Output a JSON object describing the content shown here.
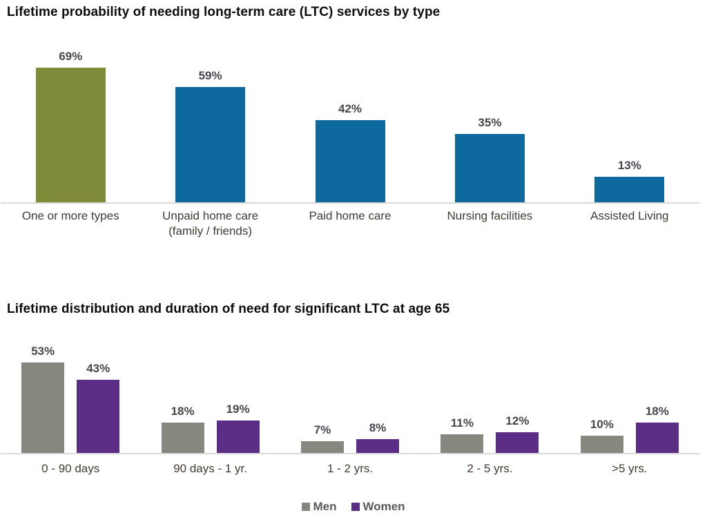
{
  "colors": {
    "olive": "#7F8B38",
    "blue": "#0E699E",
    "men_gray": "#87867F",
    "women_purple": "#5B2D84",
    "baseline": "#D9D9D9",
    "value_label": "#43464B",
    "category_label": "#403A32",
    "title": "#0D0D0D"
  },
  "chart_data": [
    {
      "type": "bar",
      "title": "Lifetime probability of needing long-term care (LTC) services by type",
      "categories": [
        "One or more types",
        "Unpaid home care (family / friends)",
        "Paid home care",
        "Nursing facilities",
        "Assisted Living"
      ],
      "values": [
        69,
        59,
        42,
        35,
        13
      ],
      "value_labels": [
        "69%",
        "59%",
        "42%",
        "35%",
        "13%"
      ],
      "bar_colors": [
        "#7F8B38",
        "#0E699E",
        "#0E699E",
        "#0E699E",
        "#0E699E"
      ],
      "xlabel": "",
      "ylabel": "",
      "ylim": [
        0,
        100
      ],
      "grid": false,
      "axis_ticks": "none",
      "legend_position": "none"
    },
    {
      "type": "bar",
      "title": "Lifetime distribution and duration of need for significant LTC at age 65",
      "categories": [
        "0 - 90 days",
        "90 days - 1 yr.",
        "1 - 2 yrs.",
        "2 - 5 yrs.",
        ">5 yrs."
      ],
      "series": [
        {
          "name": "Men",
          "color": "#87867F",
          "values": [
            53,
            18,
            7,
            11,
            10
          ],
          "value_labels": [
            "53%",
            "18%",
            "7%",
            "11%",
            "10%"
          ]
        },
        {
          "name": "Women",
          "color": "#5B2D84",
          "values": [
            43,
            19,
            8,
            12,
            18
          ],
          "value_labels": [
            "43%",
            "19%",
            "8%",
            "12%",
            "18%"
          ]
        }
      ],
      "xlabel": "",
      "ylabel": "",
      "ylim": [
        0,
        100
      ],
      "grid": false,
      "axis_ticks": "none",
      "legend_position": "bottom-center"
    }
  ]
}
